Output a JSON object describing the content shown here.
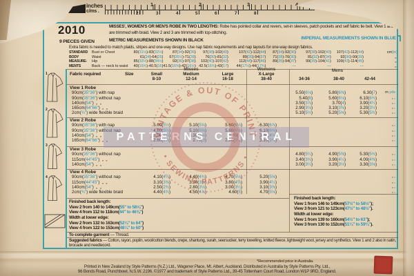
{
  "colors": {
    "teal": "#3aa3ae",
    "imperial_blue": "#2a95ba",
    "stamp_rose": "#c4665a",
    "stamp_band": "#9494be",
    "red_stamp": "#b13a2f"
  },
  "ruler": {
    "inches_label": "inches",
    "cms_label": "c/ms .",
    "inch_numbers": [
      "1",
      "2",
      "3",
      "4"
    ],
    "cm_numbers": [
      "2",
      "3",
      "4",
      "5",
      "6",
      "7",
      "8"
    ]
  },
  "envelope": {
    "pattern_number": "2010",
    "pieces": "9 PIECES GIVEN"
  },
  "header": {
    "title_bold": "MISSES', WOMEN'S OR MEN'S ROBE IN TWO LENGTHS:",
    "title_rest": " Robe has pointed collar and revers, set-in sleeves, patch pockets and self fabric tie belt. View 1 and 4 are trimmed with braid. View 2 and 3 are trimmed with top-stitching.",
    "metric_note": "METRIC MEASUREMENTS SHOWN IN BLACK",
    "imperial_note": "IMPERIAL MEASUREMENTS SHOWN IN BLUE",
    "extra_note": "Extra fabric is needed to match plaids, stripes and one-way designs. Use nap fabric requirements and nap layouts for one-way design fabrics."
  },
  "body_measurements": {
    "label_lines": [
      "STANDARD",
      "BODY",
      "MEASURE-",
      "MENTS"
    ],
    "rows": [
      {
        "name": "Bust or Chest",
        "values": [
          "80(31½)-83(32½)",
          "87(34)-92(36)",
          "97(38)-102(40)",
          "107(42)-112(44)",
          "87(34)-92(36)",
          "97(38)-102(40)",
          "107(42)-112(44)"
        ],
        "unit": "cm|(in)"
      },
      {
        "name": "Waist",
        "values": [
          "61(24)-64(25)",
          "67(26½)-71(28)",
          "76(30)-81(32)",
          "89(35)-94(37)",
          "71(28)-76(30)",
          "81(32)-87(34)",
          "92(36)-99(39)"
        ],
        "unit": "„|„"
      },
      {
        "name": "Hip",
        "values": [
          "85(33½)-88(34½)",
          "92(36)-97(38)",
          "102(40)-107(42)",
          "112(44)-117(46)",
          "89(35)-94(37)",
          "99(39)-104(41)",
          "109(43)-114(45)"
        ],
        "unit": "„|„"
      },
      {
        "name": "Back — neck to waist",
        "values": [
          "40(15¾)-40.5(16)",
          "41.5(16⅜)-42(16½)",
          "42.5(16¾)-43(17)",
          "44(17¼)-44(17¾)",
          "—",
          "—",
          "—"
        ],
        "unit": "„|„"
      }
    ]
  },
  "fabric_table": {
    "fabric_required_label": "Fabric required",
    "size_label": "Size",
    "misses_label": "Misses",
    "womens_label": "Womens",
    "mens_label": "Mens",
    "columns": [
      "Small",
      "Medium",
      "Large",
      "X-Large",
      "34-36",
      "38-40",
      "42-44"
    ],
    "column_sub": [
      "8-10",
      "12-14",
      "16-18",
      "38-40",
      "",
      "",
      ""
    ]
  },
  "views": [
    {
      "title": "View 1  Robe",
      "rows": [
        {
          "label": "90cm(35″36″) with nap",
          "v": [
            "",
            "",
            "",
            "",
            "5.50(6⅛)",
            "5.80(6⅜)",
            "6.30(7)"
          ],
          "u": "m|yds"
        },
        {
          "label": "90cm(35″36″) without nap",
          "v": [
            "",
            "",
            "",
            "",
            "5.40(6)",
            "5.60(6⅛)",
            "6.10(6¾)"
          ],
          "u": "„|„"
        },
        {
          "label": "140cm(54″)  „  „",
          "v": [
            "",
            "",
            "",
            "",
            "3.50(3⅞)",
            "3.70(4)",
            "3.90(4¼)"
          ],
          "u": "„|„"
        },
        {
          "label": "165cm(64″66″)  „  „",
          "v": [
            "",
            "",
            "",
            "",
            "2.90(3⅛)",
            "3.10(3⅜)",
            "3.20(3½)"
          ],
          "u": "„|„"
        },
        {
          "label": "2cm(¾″) wide flexible braid",
          "v": [
            "",
            "",
            "",
            "",
            "5.10(5½)",
            "5.20(5⅝)",
            "5.30(5¾)"
          ],
          "u": "„|„"
        }
      ]
    },
    {
      "title": "View 2  Robe",
      "rows": [
        {
          "label": "90cm(35″36″) with nap",
          "v": [
            "5.00(5½)",
            "5.10(5⅝)",
            "5.60(6⅛)",
            "6.30(6⅞)",
            "",
            "",
            ""
          ],
          "u": "„|„"
        },
        {
          "label": "90cm(35″36″) without nap",
          "v": [
            "4.80(5¼)",
            "5.10(5⅝)",
            "5.60(6⅛)",
            "6.10(6⅝)",
            "",
            "",
            ""
          ],
          "u": "„|„"
        },
        {
          "label": "140cm(54″)  „  „",
          "v": [
            "3.00(3¼)",
            "3.30(3⅝)",
            "3.70(4)",
            "3.80(4⅛)",
            "",
            "",
            ""
          ],
          "u": "„|„"
        },
        {
          "label": "165cm(64″66″)  „  „",
          "v": [
            "2.60(2⅞)",
            "2.70(3)",
            "2.90(3⅛)",
            "3.10(3⅜)",
            "",
            "",
            ""
          ],
          "u": "„|„"
        }
      ]
    },
    {
      "title": "View 3  Robe",
      "rows": [
        {
          "label": "90cm(35″36″) without nap",
          "v": [
            "",
            "",
            "",
            "",
            "4.80(5¼)",
            "4.90(5⅜)",
            "5.30(5¾)"
          ],
          "u": "„|„"
        },
        {
          "label": "115cm(44″45″)  „  „",
          "v": [
            "",
            "",
            "",
            "",
            "3.40(3¾)",
            "3.90(4¼)",
            "4.00(4⅜)"
          ],
          "u": "„|„"
        },
        {
          "label": "140cm(54″)  „  „",
          "v": [
            "",
            "",
            "",
            "",
            "3.00(3¼)",
            "3.20(3½)",
            "3.30(3⅝)"
          ],
          "u": "„|„"
        }
      ]
    },
    {
      "title": "View 4  Robe",
      "rows": [
        {
          "label": "90cm(35″36″) without nap",
          "v": [
            "4.10(4½)",
            "4.40(4¾)",
            "4.70(5⅛)",
            "5.20(5⅝)",
            "",
            "",
            ""
          ],
          "u": "„|„"
        },
        {
          "label": "115cm(44″45″)  „  „",
          "v": [
            "3.10(3⅜)",
            "3.30(3⅝)",
            "3.80(4⅛)",
            "3.90(4¼)",
            "",
            "",
            ""
          ],
          "u": "„|„"
        },
        {
          "label": "140cm(54″)  „  „",
          "v": [
            "2.50(2¾)",
            "2.80(3⅛)",
            "3.00(3¼)",
            "3.10(3⅜)",
            "",
            "",
            ""
          ],
          "u": "„|„"
        },
        {
          "label": "2cm(¾″) wide flexible braid",
          "v": [
            "4.40(4¾)",
            "4.50(4⅞)",
            "4.60(5)",
            "4.70(5⅛)",
            "",
            "",
            ""
          ],
          "u": "„|„"
        }
      ]
    }
  ],
  "finished_left": {
    "lines": [
      "Finished back length:",
      "View 2 from 140 to 149cm(55″ to 58⅝″)",
      "View 4 from 112 to 118cm(44″ to 46⅜″)",
      "Width at lower edge:",
      "View 2 from 132 to 163cm(52¼″ to 64″)",
      "View 4 from 122 to 153cm(48¼″ to 60″)"
    ]
  },
  "finished_right": {
    "lines": [
      "Finished back length:",
      "View 1 from 146 to 149cm(57½″ to 58½″);",
      "View 3 from 121 to 123cm(47½″ to 48½″).",
      "Width at lower edge:",
      "View 1 from 139 to 160cm(54½″ to 63″);",
      "View 3 from 130 to 152cm(51¼″ to 59¾″)."
    ]
  },
  "notes": {
    "to_complete_bold": "To complete garment",
    "to_complete_rest": " — Thread.",
    "suggested_bold": "Suggested fabrics",
    "suggested_rest": " — Cotton, rayon, poplin, wool/cotton blends, crepe, shantung, surah, seersucker, terry towelling, knitted fleece, lightweight wool, jersey and synthetics. View 1 and 2 also in satin, brocade and needlecord."
  },
  "sketches": {
    "labels": [
      "1",
      "2",
      "3",
      "4"
    ]
  },
  "watermark": {
    "arc_top": "VINTAGE & OUT OF PRINT",
    "band": "PATTERNS CENTRAL",
    "arc_bottom": "• SEWING PATTERNS •"
  },
  "footer": {
    "note": "*Recommended price in Australia.",
    "line1": "Printed in New Zealand by Style Patterns (N.Z.) Ltd., Wagener Place, Mt. Albert, Auckland. Distributed in Australia by Style Patterns Pty. Ltd.,",
    "line2": "96 Bonds Road, Punchbowl, N.S.W. 2196.      ©1977 and trademark of Style Patterns Ltd., 39-45 Tottenham Court Road, London W1P 9RD, England."
  }
}
